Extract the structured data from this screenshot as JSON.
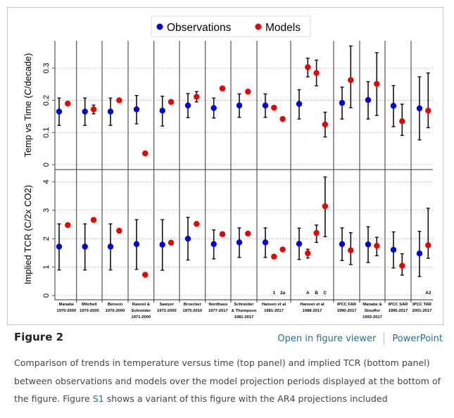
{
  "figure": {
    "title": "Figure 2",
    "open_viewer_label": "Open in figure viewer",
    "powerpoint_label": "PowerPoint",
    "caption_part1": "Comparison of trends in temperature versus time (top panel) and implied TCR (bottom panel) between observations and models over the model projection periods displayed at the bottom of the figure. Figure ",
    "caption_link": "S1",
    "caption_part2": " shows a variant of this figure with the AR4 projections included"
  },
  "colors": {
    "observations": "#0000e0",
    "models": "#e80000",
    "link": "#2b6e8f"
  },
  "chart_data": {
    "type": "scatter",
    "grid": true,
    "legend": {
      "placement": "top-center",
      "entries": [
        {
          "name": "Observations",
          "color": "#0000e0"
        },
        {
          "name": "Models",
          "color": "#e80000"
        }
      ]
    },
    "categories": [
      {
        "lines": [
          "Manabe",
          "1970-2000"
        ]
      },
      {
        "lines": [
          "Mitchell",
          "1970-2000"
        ]
      },
      {
        "lines": [
          "Benson",
          "1970-2000"
        ]
      },
      {
        "lines": [
          "Rasool &",
          "Schneider",
          "1971-2000"
        ]
      },
      {
        "lines": [
          "Sawyer",
          "1972-2000"
        ]
      },
      {
        "lines": [
          "Broecker",
          "1975-2010"
        ]
      },
      {
        "lines": [
          "Nordhaus",
          "1977-2017"
        ]
      },
      {
        "lines": [
          "Schneider",
          "& Thompson",
          "1981-2017"
        ]
      },
      {
        "lines": [
          "Hansen et al",
          "1981-2017"
        ]
      },
      {
        "lines": [
          "Hansen et al",
          "1988-2017"
        ]
      },
      {
        "lines": [
          "IPCC FAR",
          "1990-2017"
        ]
      },
      {
        "lines": [
          "Manabe &",
          "Stouffer",
          "1993-2017"
        ]
      },
      {
        "lines": [
          "IPCC SAR",
          "1995-2017"
        ]
      },
      {
        "lines": [
          "IPCC TAR",
          "2001-2017"
        ]
      }
    ],
    "model_labels": [
      [
        ""
      ],
      [
        ""
      ],
      [
        ""
      ],
      [
        ""
      ],
      [
        ""
      ],
      [
        ""
      ],
      [
        ""
      ],
      [
        ""
      ],
      [
        "1",
        "2a"
      ],
      [
        "A",
        "B",
        "C"
      ],
      [
        ""
      ],
      [
        ""
      ],
      [
        ""
      ],
      [
        "A2"
      ]
    ],
    "panels": [
      {
        "ylabel": "Temp vs Time (C/decade)",
        "ylim": [
          0,
          0.385
        ],
        "ticks": [
          "0",
          "0.1",
          "0.2",
          "0.3"
        ],
        "observations": [
          [
            0.165,
            0.122,
            0.207
          ],
          [
            0.165,
            0.122,
            0.207
          ],
          [
            0.165,
            0.122,
            0.207
          ],
          [
            0.172,
            0.127,
            0.215
          ],
          [
            0.168,
            0.12,
            0.213
          ],
          [
            0.184,
            0.146,
            0.221
          ],
          [
            0.176,
            0.145,
            0.207
          ],
          [
            0.184,
            0.147,
            0.22
          ],
          [
            0.184,
            0.147,
            0.22
          ],
          [
            0.189,
            0.142,
            0.233
          ],
          [
            0.192,
            0.142,
            0.241
          ],
          [
            0.201,
            0.142,
            0.258
          ],
          [
            0.183,
            0.118,
            0.246
          ],
          [
            0.175,
            0.077,
            0.273
          ]
        ],
        "models": [
          [
            [
              0.19
            ]
          ],
          [
            [
              0.172,
              0.158,
              0.185
            ]
          ],
          [
            [
              0.2
            ]
          ],
          [
            [
              0.035
            ]
          ],
          [
            [
              0.195
            ]
          ],
          [
            [
              0.211,
              0.195,
              0.227
            ]
          ],
          [
            [
              0.237,
              0.23,
              0.243
            ]
          ],
          [
            [
              0.227
            ]
          ],
          [
            [
              0.177,
              0.172,
              0.182
            ],
            [
              0.142
            ]
          ],
          [
            [
              0.303,
              0.273,
              0.331
            ],
            [
              0.285,
              0.245,
              0.325
            ],
            [
              0.125,
              0.086,
              0.163
            ]
          ],
          [
            [
              0.263,
              0.177,
              0.369
            ]
          ],
          [
            [
              0.251,
              0.153,
              0.348
            ]
          ],
          [
            [
              0.135,
              0.091,
              0.188
            ]
          ],
          [
            [
              0.168,
              0.115,
              0.285
            ]
          ]
        ]
      },
      {
        "ylabel": "Implied TCR (C/2x CO2)",
        "ylim": [
          0,
          4.43
        ],
        "ticks": [
          "0",
          "1",
          "2",
          "3",
          "4"
        ],
        "observations": [
          [
            1.72,
            0.9,
            2.52
          ],
          [
            1.72,
            0.9,
            2.52
          ],
          [
            1.72,
            0.9,
            2.52
          ],
          [
            1.81,
            0.92,
            2.67
          ],
          [
            1.79,
            0.89,
            2.67
          ],
          [
            2.0,
            1.25,
            2.75
          ],
          [
            1.81,
            1.29,
            2.31
          ],
          [
            1.87,
            1.34,
            2.38
          ],
          [
            1.87,
            1.34,
            2.38
          ],
          [
            1.82,
            1.27,
            2.37
          ],
          [
            1.81,
            1.23,
            2.38
          ],
          [
            1.8,
            1.16,
            2.42
          ],
          [
            1.61,
            0.97,
            2.24
          ],
          [
            1.48,
            0.67,
            2.26
          ]
        ],
        "models": [
          [
            [
              2.48
            ]
          ],
          [
            [
              2.66,
              2.6,
              2.71
            ]
          ],
          [
            [
              2.28
            ]
          ],
          [
            [
              0.73
            ]
          ],
          [
            [
              1.86
            ]
          ],
          [
            [
              2.52
            ]
          ],
          [
            [
              2.16
            ]
          ],
          [
            [
              2.18
            ]
          ],
          [
            [
              1.37
            ],
            [
              1.62
            ]
          ],
          [
            [
              1.49,
              1.32,
              1.63
            ],
            [
              2.2,
              1.87,
              2.48
            ],
            [
              3.14,
              2.07,
              4.17
            ]
          ],
          [
            [
              1.59,
              1.09,
              2.21
            ]
          ],
          [
            [
              1.75,
              1.4,
              2.05
            ]
          ],
          [
            [
              1.05,
              0.72,
              1.47
            ]
          ],
          [
            [
              1.77,
              1.31,
              3.07
            ]
          ]
        ]
      }
    ]
  }
}
